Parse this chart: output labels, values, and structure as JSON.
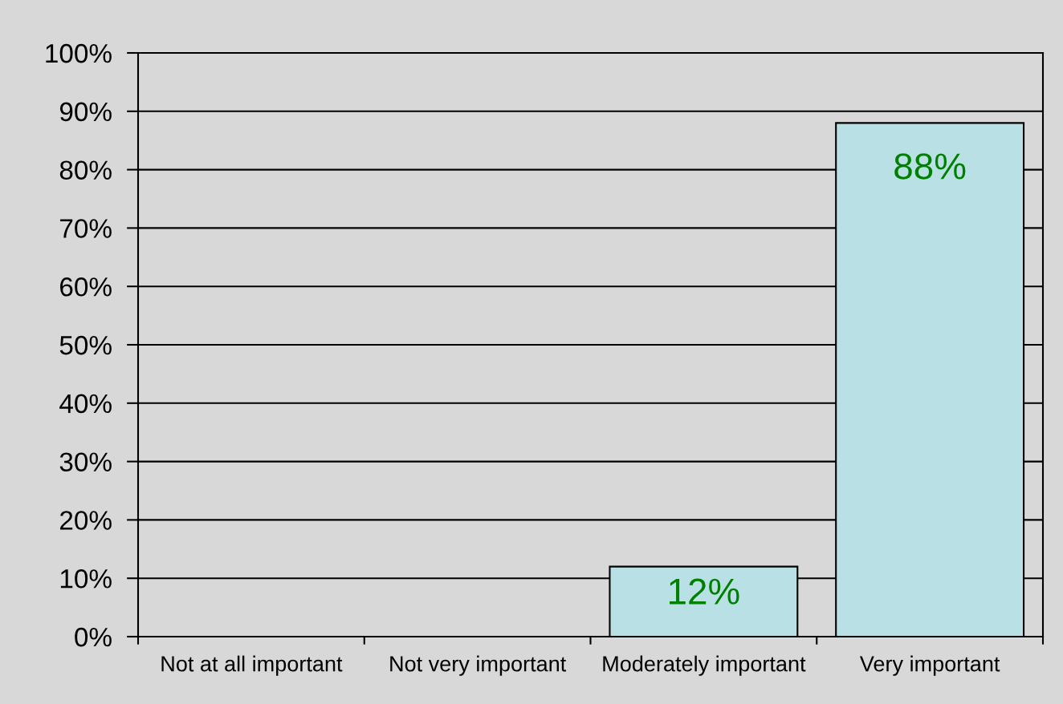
{
  "chart_data": {
    "type": "bar",
    "categories": [
      "Not at all important",
      "Not very important",
      "Moderately important",
      "Very important"
    ],
    "values": [
      null,
      null,
      12,
      88
    ],
    "color": "#b9e0e4",
    "value_labels": [
      null,
      null,
      "12%",
      "88%"
    ],
    "ylim": [
      0,
      100
    ],
    "yticks": [
      {
        "value": 0,
        "label": "0%"
      },
      {
        "value": 10,
        "label": "10%"
      },
      {
        "value": 20,
        "label": "20%"
      },
      {
        "value": 30,
        "label": "30%"
      },
      {
        "value": 40,
        "label": "40%"
      },
      {
        "value": 50,
        "label": "50%"
      },
      {
        "value": 60,
        "label": "60%"
      },
      {
        "value": 70,
        "label": "70%"
      },
      {
        "value": 80,
        "label": "80%"
      },
      {
        "value": 90,
        "label": "90%"
      },
      {
        "value": 100,
        "label": "100%"
      }
    ],
    "grid": "y"
  }
}
